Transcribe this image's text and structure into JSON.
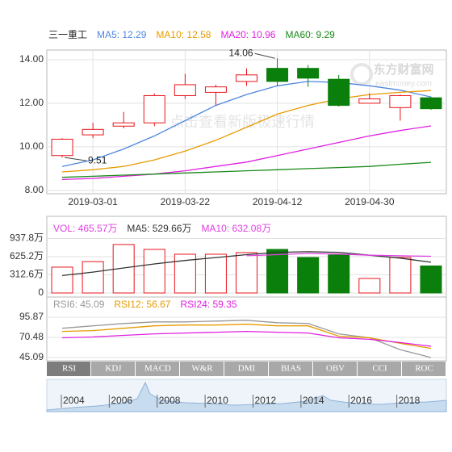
{
  "chart_data": [
    {
      "type": "candlestick",
      "title": "三一重工",
      "categories": [
        null,
        "2019-03-01",
        null,
        null,
        "2019-03-22",
        null,
        null,
        "2019-04-12",
        null,
        null,
        "2019-04-30",
        null,
        null
      ],
      "open": [
        9.6,
        10.55,
        10.95,
        11.1,
        12.35,
        12.5,
        13.0,
        13.6,
        13.6,
        13.1,
        12.0,
        11.8,
        12.25
      ],
      "high": [
        10.4,
        11.1,
        11.6,
        12.45,
        13.35,
        12.85,
        13.6,
        14.06,
        13.75,
        13.3,
        12.45,
        12.4,
        12.3
      ],
      "low": [
        9.51,
        10.4,
        10.85,
        10.95,
        12.2,
        11.9,
        12.8,
        12.8,
        12.75,
        11.85,
        12.0,
        11.2,
        11.7
      ],
      "close": [
        10.35,
        10.8,
        11.1,
        12.35,
        12.85,
        12.75,
        13.3,
        13.0,
        13.15,
        11.9,
        12.2,
        12.35,
        11.75
      ],
      "up_color": "#e8141a",
      "down_color": "#0b7f0b",
      "series": [
        {
          "name": "MA5: 12.29",
          "color": "#4f86e0",
          "values": [
            9.1,
            9.4,
            9.9,
            10.5,
            11.2,
            11.9,
            12.4,
            12.8,
            13.0,
            12.95,
            12.8,
            12.6,
            12.29
          ]
        },
        {
          "name": "MA10: 12.58",
          "color": "#e69b00",
          "values": [
            8.85,
            8.95,
            9.1,
            9.4,
            9.8,
            10.3,
            10.9,
            11.5,
            11.9,
            12.2,
            12.4,
            12.5,
            12.58
          ]
        },
        {
          "name": "MA20: 10.96",
          "color": "#e020e0",
          "values": [
            8.5,
            8.55,
            8.65,
            8.75,
            8.9,
            9.1,
            9.3,
            9.6,
            9.9,
            10.2,
            10.5,
            10.75,
            10.96
          ]
        },
        {
          "name": "MA60: 9.29",
          "color": "#1a8a1a",
          "values": [
            8.6,
            8.65,
            8.7,
            8.75,
            8.8,
            8.85,
            8.9,
            8.95,
            9.0,
            9.05,
            9.1,
            9.2,
            9.29
          ]
        }
      ],
      "ylim": [
        7.85,
        14.44
      ],
      "yticks": [
        {
          "value": 8,
          "label": "8.00"
        },
        {
          "value": 10,
          "label": "10.00"
        },
        {
          "value": 12,
          "label": "12.00"
        },
        {
          "value": 14,
          "label": "14.00"
        }
      ],
      "grid": true
    },
    {
      "type": "volume",
      "series": [
        {
          "name": "VOL: 465.57万",
          "type": "bar",
          "color": "#e040e0",
          "values": [
            445,
            540,
            834,
            750,
            667,
            667,
            695,
            750,
            611,
            653,
            250,
            611,
            465.57
          ]
        },
        {
          "name": "MA5: 529.66万",
          "type": "line",
          "color": "#333333",
          "values": [
            300,
            360,
            430,
            500,
            560,
            610,
            660,
            700,
            710,
            700,
            650,
            600,
            529.66
          ]
        },
        {
          "name": "MA10: 632.08万",
          "type": "line",
          "color": "#e040e0",
          "values": [
            null,
            null,
            null,
            null,
            null,
            null,
            640,
            660,
            680,
            670,
            650,
            640,
            632.08
          ]
        }
      ],
      "ylim": [
        0,
        1014
      ],
      "yticks": [
        0,
        {
          "value": 312.6,
          "label": "312.6万"
        },
        {
          "value": 625.2,
          "label": "625.2万"
        },
        {
          "value": 937.8,
          "label": "937.8万"
        }
      ],
      "grid": true
    },
    {
      "type": "line",
      "series": [
        {
          "name": "RSI6: 45.09",
          "color": "#999999",
          "values": [
            82,
            85,
            88,
            90,
            90,
            91,
            92,
            89,
            88,
            75,
            70,
            55,
            45.09
          ]
        },
        {
          "name": "RSI12: 56.67",
          "color": "#e69b00",
          "values": [
            78,
            79,
            82,
            85,
            86,
            86,
            87,
            85,
            85,
            72,
            70,
            63,
            56.67
          ]
        },
        {
          "name": "RSI24: 59.35",
          "color": "#e020e0",
          "values": [
            70,
            71,
            73,
            75,
            76,
            77,
            78,
            77,
            76,
            70,
            68,
            64,
            59.35
          ]
        }
      ],
      "ylim": [
        41.03,
        100.95
      ],
      "yticks": [
        45.09,
        70.48,
        95.87
      ],
      "grid": true
    }
  ],
  "tabs": [
    "RSI",
    "KDJ",
    "MACD",
    "W&R",
    "DMI",
    "BIAS",
    "OBV",
    "CCI",
    "ROC"
  ],
  "navigator": {
    "years": [
      2004,
      2006,
      2008,
      2010,
      2012,
      2014,
      2016,
      2018
    ]
  },
  "watermark": {
    "brand": "东方财富网",
    "site": "eastmoney.com",
    "link": "点击查看新版极速行情"
  }
}
